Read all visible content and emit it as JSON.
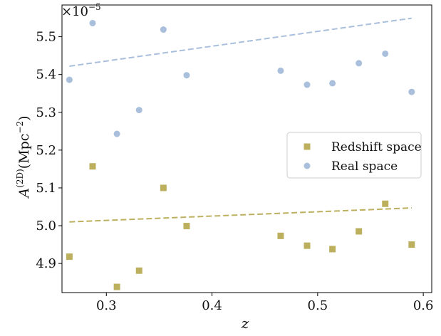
{
  "chart_data": {
    "type": "scatter",
    "title": "",
    "xlabel": "z",
    "ylabel": "A(2D) (Mpc−2)",
    "ylabel_parts": {
      "symbol": "A",
      "superscript": "(2D)",
      "unit_open": "(Mpc",
      "unit_superscript": "−2",
      "unit_close": ")"
    },
    "y_multiplier": "×10−5",
    "y_multiplier_parts": {
      "base": "×10",
      "exponent": "−5"
    },
    "xlim": [
      0.258,
      0.608
    ],
    "ylim": [
      4.823,
      5.584
    ],
    "x_ticks": [
      0.3,
      0.4,
      0.5,
      0.6
    ],
    "x_tick_labels": [
      "0.3",
      "0.4",
      "0.5",
      "0.6"
    ],
    "y_ticks": [
      4.9,
      5.0,
      5.1,
      5.2,
      5.3,
      5.4,
      5.5
    ],
    "y_tick_labels": [
      "4.9",
      "5.0",
      "5.1",
      "5.2",
      "5.3",
      "5.4",
      "5.5"
    ],
    "grid": false,
    "legend_position": "right",
    "series": [
      {
        "name": "Redshift space",
        "marker": "square",
        "color": "#bcb05e",
        "x": [
          0.265,
          0.287,
          0.31,
          0.331,
          0.354,
          0.376,
          0.465,
          0.49,
          0.514,
          0.539,
          0.564,
          0.589
        ],
        "y": [
          4.918,
          5.157,
          4.838,
          4.881,
          5.1,
          4.999,
          4.973,
          4.947,
          4.938,
          4.985,
          5.058,
          4.95
        ],
        "fit": {
          "style": "dashed",
          "x": [
            0.265,
            0.589
          ],
          "y": [
            5.01,
            5.047
          ]
        }
      },
      {
        "name": "Real space",
        "marker": "circle",
        "color": "#a9bfdc",
        "x": [
          0.265,
          0.287,
          0.31,
          0.331,
          0.354,
          0.376,
          0.465,
          0.49,
          0.514,
          0.539,
          0.564,
          0.589
        ],
        "y": [
          5.386,
          5.536,
          5.243,
          5.306,
          5.519,
          5.398,
          5.41,
          5.373,
          5.377,
          5.43,
          5.455,
          5.354
        ],
        "fit": {
          "style": "dashed",
          "x": [
            0.265,
            0.589
          ],
          "y": [
            5.422,
            5.549
          ]
        }
      }
    ]
  }
}
